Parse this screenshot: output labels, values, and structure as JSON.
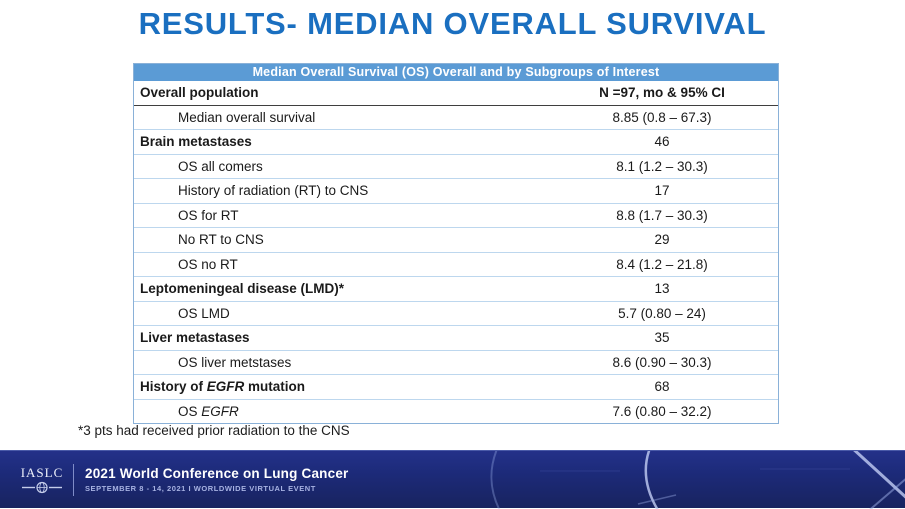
{
  "slide": {
    "title": "RESULTS- MEDIAN OVERALL SURVIVAL",
    "footnote": "*3 pts had received prior radiation to the CNS"
  },
  "table": {
    "header": "Median Overall Survival (OS) Overall and by Subgroups of Interest",
    "rows": [
      {
        "label": "Overall population",
        "value": "N =97, mo & 95% CI",
        "type": "group",
        "divider": "dark",
        "value_bold": true
      },
      {
        "label": "Median overall survival",
        "value": "8.85 (0.8 – 67.3)",
        "type": "sub"
      },
      {
        "label": "Brain metastases",
        "value": "46",
        "type": "group"
      },
      {
        "label": "OS all comers",
        "value": "8.1 (1.2 – 30.3)",
        "type": "sub"
      },
      {
        "label": "History of radiation (RT) to CNS",
        "value": "17",
        "type": "sub"
      },
      {
        "label": "OS for RT",
        "value": "8.8 (1.7 – 30.3)",
        "type": "sub"
      },
      {
        "label": "No RT to CNS",
        "value": "29",
        "type": "sub"
      },
      {
        "label": "OS no RT",
        "value": "8.4 (1.2 – 21.8)",
        "type": "sub"
      },
      {
        "label": "Leptomeningeal disease (LMD)*",
        "value": "13",
        "type": "group"
      },
      {
        "label": "OS LMD",
        "value": "5.7 (0.80 – 24)",
        "type": "sub"
      },
      {
        "label": "Liver metastases",
        "value": "35",
        "type": "group"
      },
      {
        "label": "OS liver metstases",
        "value": "8.6 (0.90 – 30.3)",
        "type": "sub"
      },
      {
        "label_parts": [
          {
            "text": "History of ",
            "italic": false
          },
          {
            "text": "EGFR",
            "italic": true
          },
          {
            "text": " mutation",
            "italic": false
          }
        ],
        "value": "68",
        "type": "group"
      },
      {
        "label_parts": [
          {
            "text": "OS ",
            "italic": false
          },
          {
            "text": "EGFR",
            "italic": true
          }
        ],
        "value": "7.6 (0.80 – 32.2)",
        "type": "sub"
      }
    ]
  },
  "footer": {
    "logo_text": "IASLC",
    "conference": "2021 World Conference on Lung Cancer",
    "event_details": "SEPTEMBER 8 - 14, 2021 I WORLDWIDE VIRTUAL EVENT"
  },
  "colors": {
    "title_blue": "#1a6fc0",
    "table_header_bg": "#5b9bd5",
    "table_border_light": "#bdd7ee",
    "table_border_dark": "#3f3f3f",
    "footer_navy": "#1d2b7b",
    "footer_subtitle": "#a7b2e2"
  }
}
